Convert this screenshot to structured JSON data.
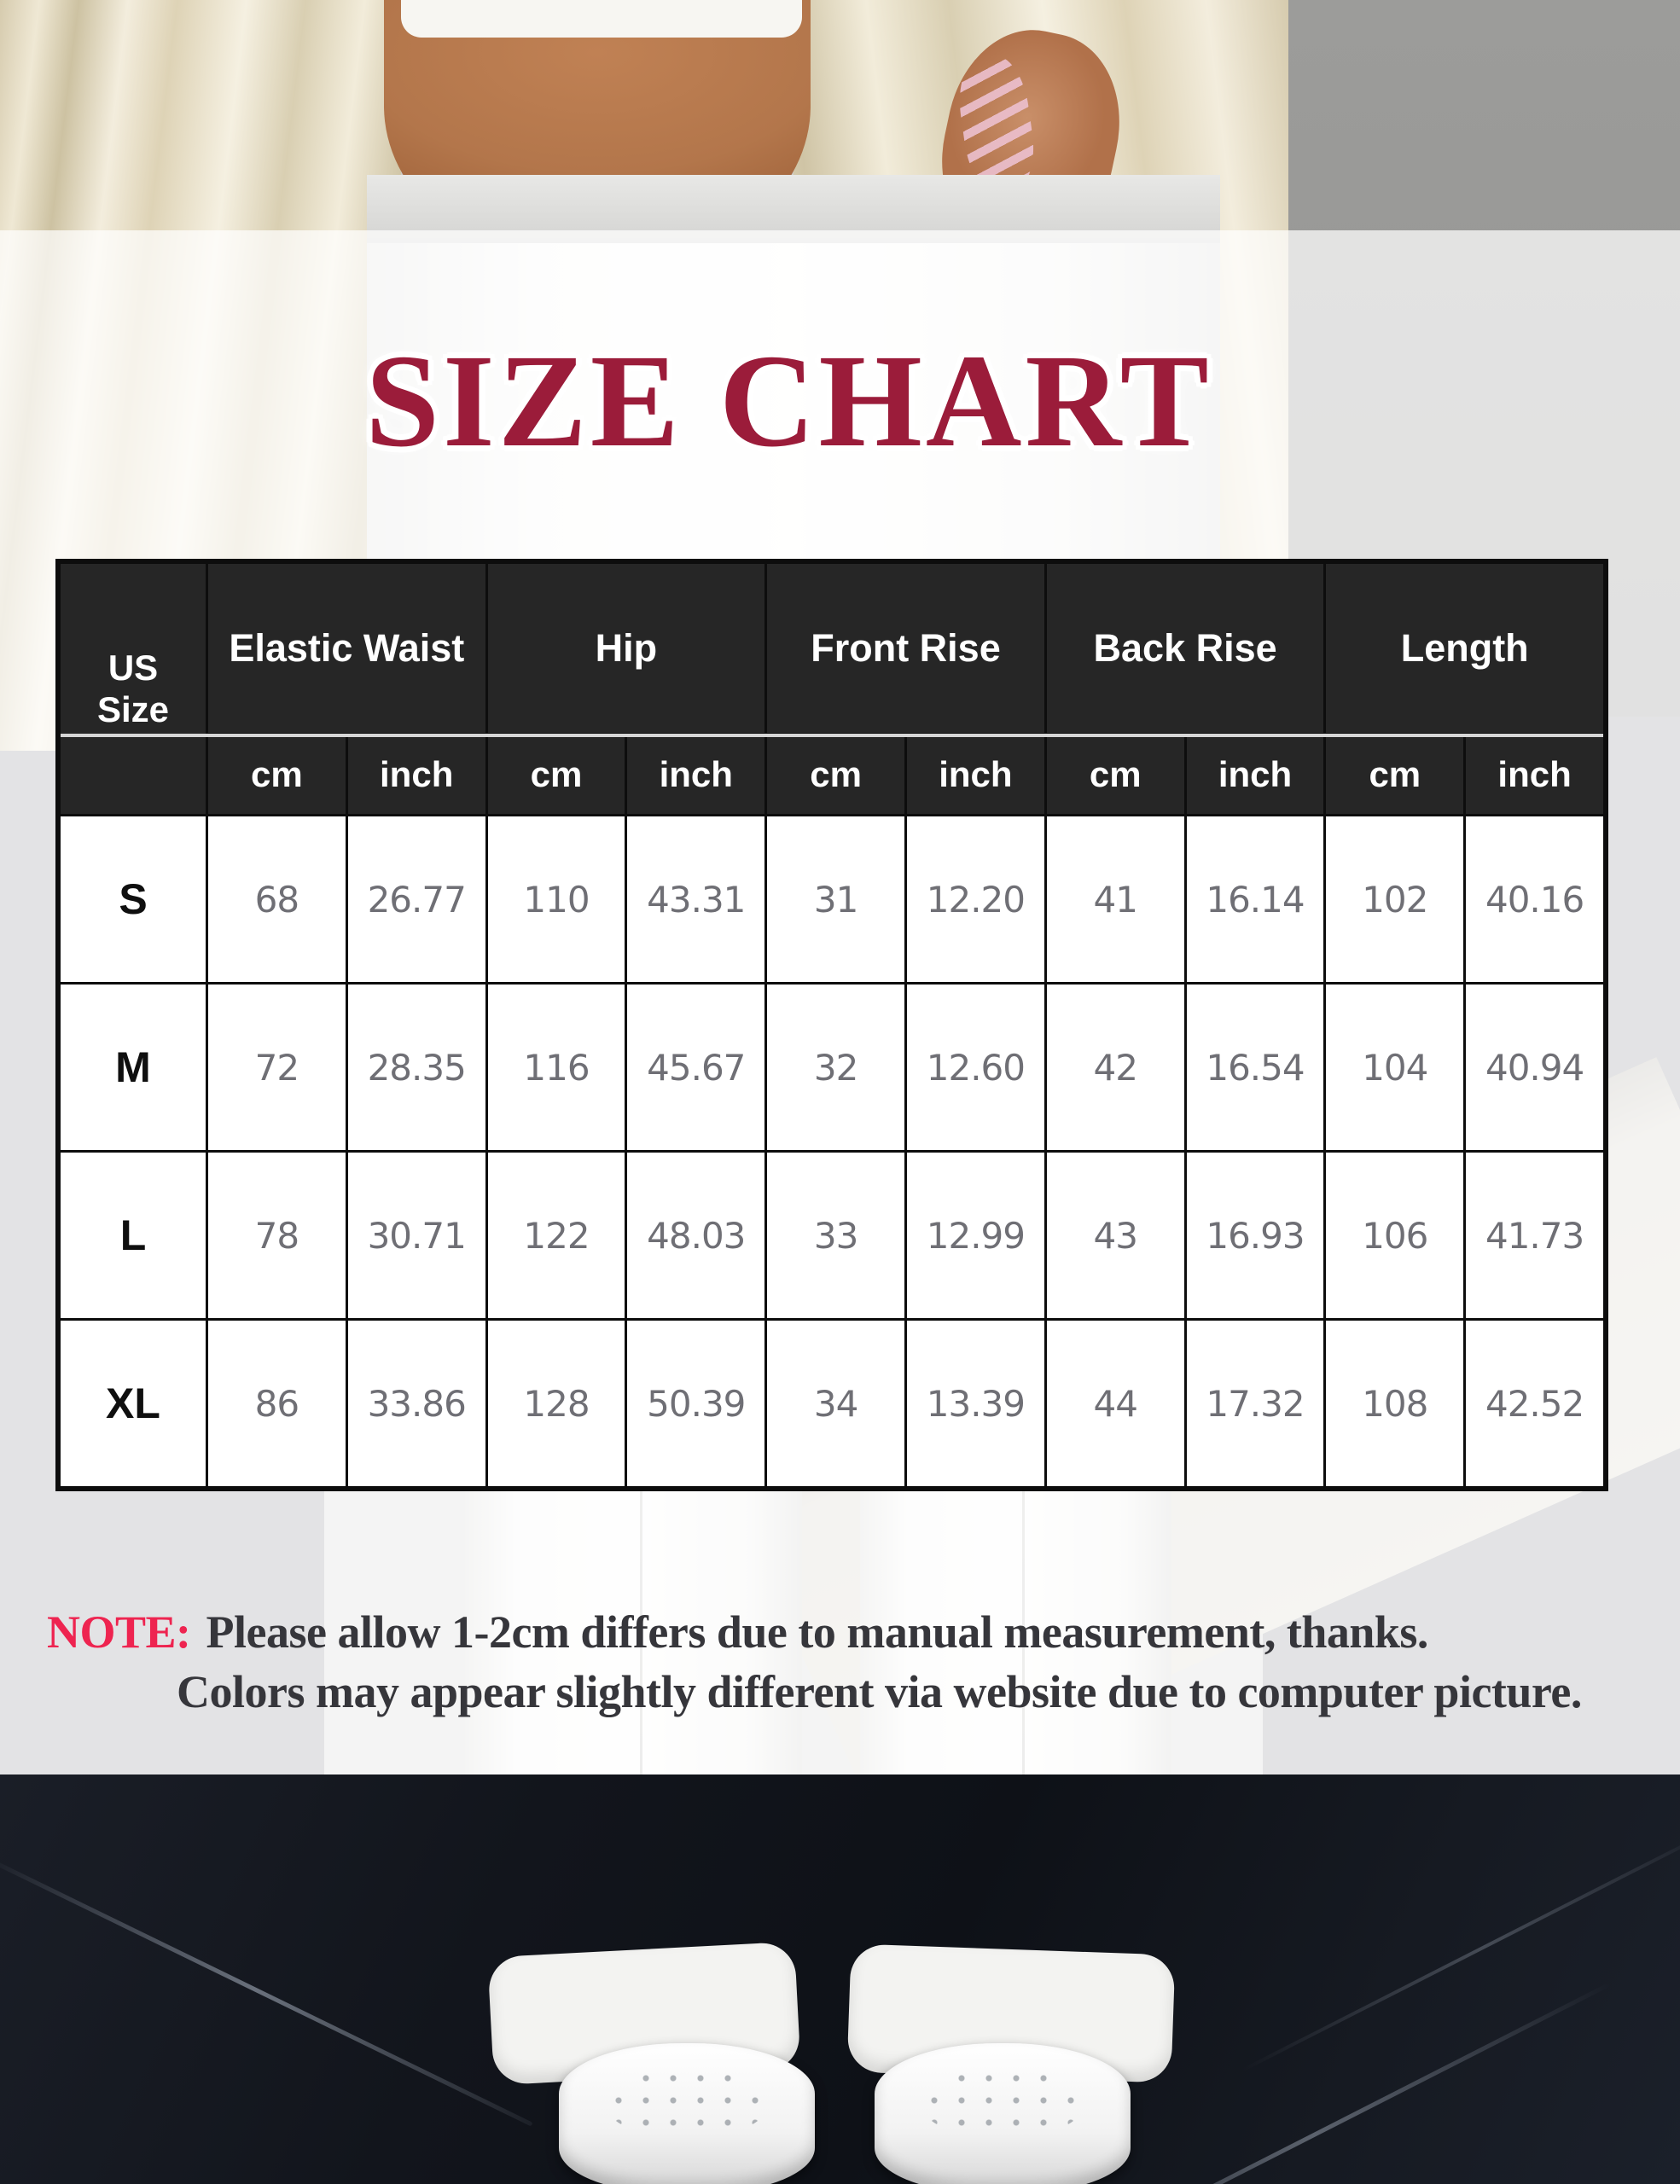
{
  "title": "SIZE CHART",
  "size_chart": {
    "header": {
      "size_label": "US Size",
      "measures": [
        "Elastic Waist",
        "Hip",
        "Front Rise",
        "Back Rise",
        "Length"
      ]
    },
    "units": [
      "cm",
      "inch",
      "cm",
      "inch",
      "cm",
      "inch",
      "cm",
      "inch",
      "cm",
      "inch"
    ],
    "rows": [
      {
        "size": "S",
        "values": [
          "68",
          "26.77",
          "110",
          "43.31",
          "31",
          "12.20",
          "41",
          "16.14",
          "102",
          "40.16"
        ]
      },
      {
        "size": "M",
        "values": [
          "72",
          "28.35",
          "116",
          "45.67",
          "32",
          "12.60",
          "42",
          "16.54",
          "104",
          "40.94"
        ]
      },
      {
        "size": "L",
        "values": [
          "78",
          "30.71",
          "122",
          "48.03",
          "33",
          "12.99",
          "43",
          "16.93",
          "106",
          "41.73"
        ]
      },
      {
        "size": "XL",
        "values": [
          "86",
          "33.86",
          "128",
          "50.39",
          "34",
          "13.39",
          "44",
          "17.32",
          "108",
          "42.52"
        ]
      }
    ]
  },
  "note": {
    "label": "NOTE:",
    "line1": "Please allow 1-2cm differs due to manual measurement, thanks.",
    "line2": "Colors may appear slightly different via website due to computer picture."
  },
  "colors": {
    "title_red": "#9b1c3a",
    "note_red": "#ee2450",
    "note_text": "#36363b",
    "header_bg": "#262626",
    "grid_line": "#0d0d0d",
    "value_text": "#6f6f75"
  }
}
